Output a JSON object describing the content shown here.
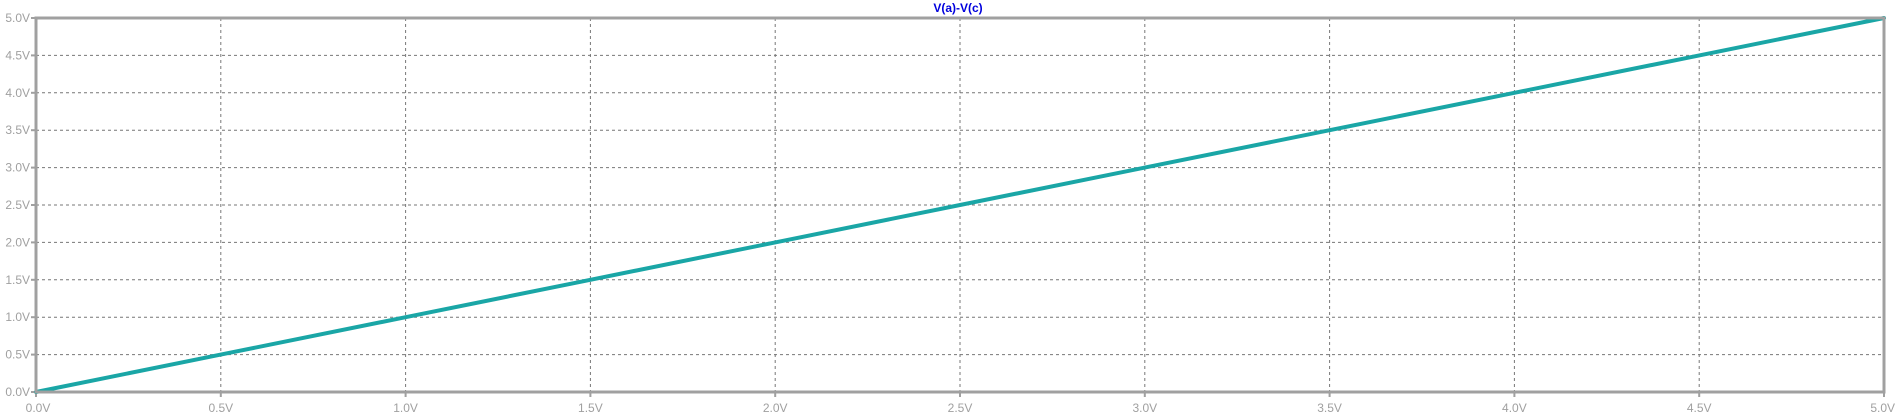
{
  "chart_data": {
    "type": "line",
    "title": "V(a)-V(c)",
    "xlabel": "",
    "ylabel": "",
    "xlim": [
      0,
      5
    ],
    "ylim": [
      0,
      5
    ],
    "grid": true,
    "x_ticks": [
      0,
      0.5,
      1,
      1.5,
      2,
      2.5,
      3,
      3.5,
      4,
      4.5,
      5
    ],
    "y_ticks": [
      0,
      0.5,
      1,
      1.5,
      2,
      2.5,
      3,
      3.5,
      4,
      4.5,
      5
    ],
    "x_tick_labels": [
      "0.0V",
      "0.5V",
      "1.0V",
      "1.5V",
      "2.0V",
      "2.5V",
      "3.0V",
      "3.5V",
      "4.0V",
      "4.5V",
      "5.0V"
    ],
    "y_tick_labels": [
      "0.0V",
      "0.5V",
      "1.0V",
      "1.5V",
      "2.0V",
      "2.5V",
      "3.0V",
      "3.5V",
      "4.0V",
      "4.5V",
      "5.0V"
    ],
    "series": [
      {
        "color": "#1aa6a6",
        "x": [
          0,
          0.5,
          1,
          1.5,
          2,
          2.5,
          3,
          3.5,
          4,
          4.5,
          5
        ],
        "y": [
          0,
          0.5,
          1,
          1.5,
          2,
          2.5,
          3,
          3.5,
          4,
          4.5,
          5
        ]
      }
    ],
    "colors": {
      "frame": "#a0a0a0",
      "grid": "#777777",
      "title": "#0000dd",
      "tick_label": "#a0a0a0"
    }
  }
}
